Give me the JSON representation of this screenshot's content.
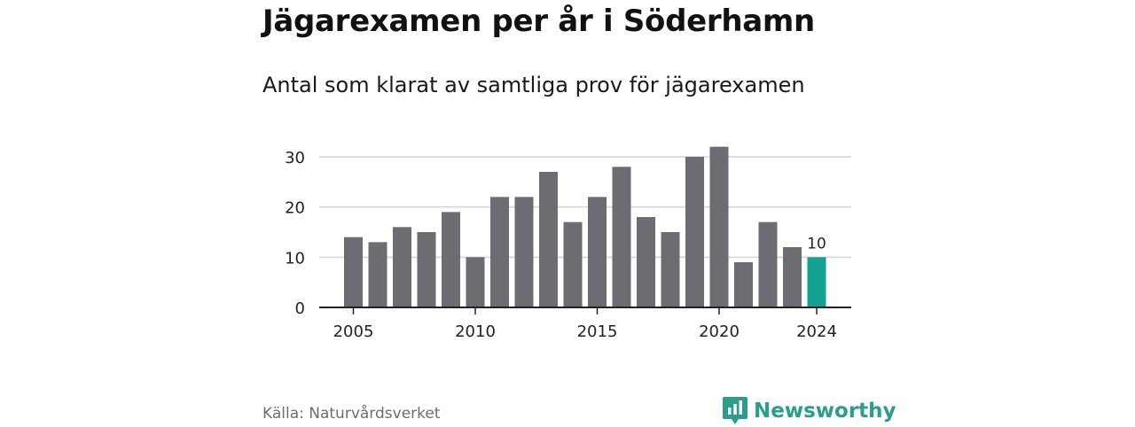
{
  "header": {
    "title": "Jägarexamen per år i Söderhamn",
    "subtitle": "Antal som klarat av samtliga prov för jägarexamen"
  },
  "footer": {
    "source": "Källa: Naturvårdsverket",
    "brand": "Newsworthy"
  },
  "colors": {
    "bar": "#6d6c72",
    "highlight": "#12a394",
    "grid": "#d4d4d4",
    "axis": "#222222",
    "text": "#222222",
    "brand": "#2a9d8f"
  },
  "chart_data": {
    "type": "bar",
    "categories": [
      2005,
      2006,
      2007,
      2008,
      2009,
      2010,
      2011,
      2012,
      2013,
      2014,
      2015,
      2016,
      2017,
      2018,
      2019,
      2020,
      2021,
      2022,
      2023,
      2024
    ],
    "values": [
      14,
      13,
      16,
      15,
      19,
      10,
      22,
      22,
      27,
      17,
      22,
      28,
      18,
      15,
      30,
      32,
      9,
      17,
      12,
      10
    ],
    "title": "Jägarexamen per år i Söderhamn",
    "subtitle": "Antal som klarat av samtliga prov för jägarexamen",
    "xlabel": "",
    "ylabel": "",
    "ylim": [
      0,
      33
    ],
    "yticks": [
      0,
      10,
      20,
      30
    ],
    "xticks": [
      2005,
      2010,
      2015,
      2020,
      2024
    ],
    "highlight": {
      "category": 2024,
      "label": "10"
    },
    "grid": true
  }
}
